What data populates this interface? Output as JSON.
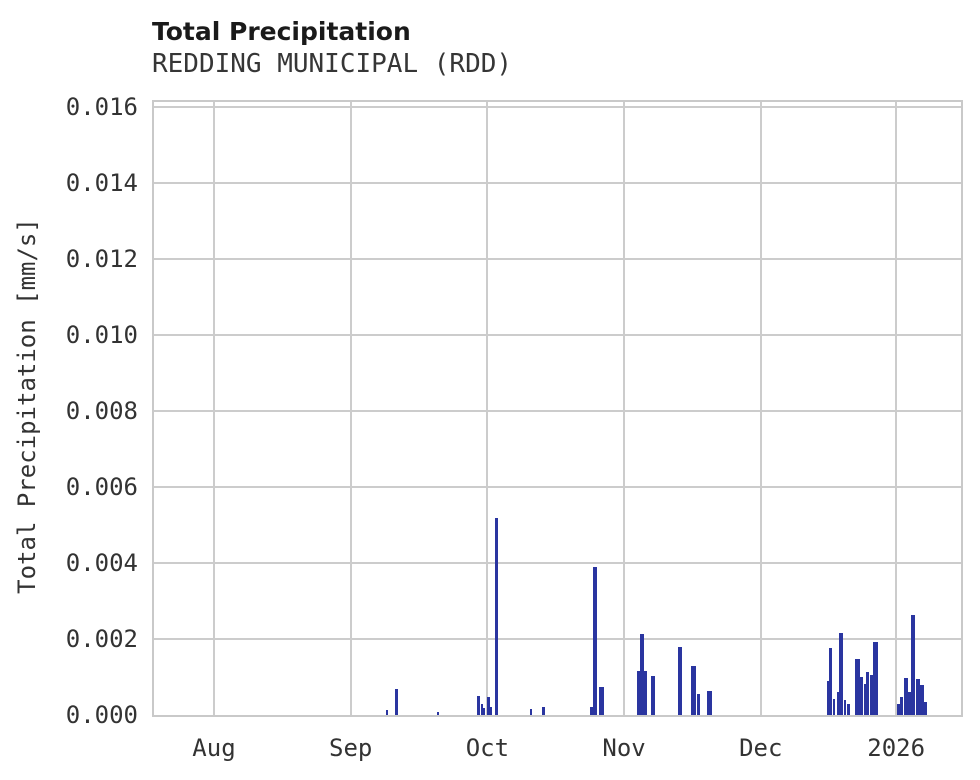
{
  "title": "Total Precipitation",
  "subtitle": "REDDING MUNICIPAL (RDD)",
  "chart_data": {
    "type": "bar",
    "title": "Total Precipitation",
    "subtitle": "REDDING MUNICIPAL (RDD)",
    "station": "REDDING MUNICIPAL (RDD)",
    "xlabel": "",
    "ylabel": "Total Precipitation [mm/s]",
    "ylim": [
      0,
      0.01614
    ],
    "x_domain_days": [
      0,
      183
    ],
    "grid": true,
    "legend": "none",
    "bar_color": "#2a35a0",
    "grid_color": "#cccccc",
    "axis_text_color": "#333333",
    "y_ticks": [
      {
        "label": "0.000",
        "v": 0.0
      },
      {
        "label": "0.002",
        "v": 0.002
      },
      {
        "label": "0.004",
        "v": 0.004
      },
      {
        "label": "0.006",
        "v": 0.006
      },
      {
        "label": "0.008",
        "v": 0.008
      },
      {
        "label": "0.010",
        "v": 0.01
      },
      {
        "label": "0.012",
        "v": 0.012
      },
      {
        "label": "0.014",
        "v": 0.014
      },
      {
        "label": "0.016",
        "v": 0.016
      }
    ],
    "x_ticks": [
      {
        "label": "Aug",
        "day": 13.6
      },
      {
        "label": "Sep",
        "day": 44.6
      },
      {
        "label": "Oct",
        "day": 75.6
      },
      {
        "label": "Nov",
        "day": 106.6
      },
      {
        "label": "Dec",
        "day": 137.6
      },
      {
        "label": "2026",
        "day": 168.3
      }
    ],
    "bars": [
      {
        "x": 52.9,
        "w": 0.45,
        "v": 0.00012
      },
      {
        "x": 55.1,
        "w": 0.68,
        "v": 0.00068
      },
      {
        "x": 64.5,
        "w": 0.45,
        "v": 8e-05
      },
      {
        "x": 73.6,
        "w": 0.68,
        "v": 0.0005
      },
      {
        "x": 74.3,
        "w": 0.45,
        "v": 0.0003
      },
      {
        "x": 74.8,
        "w": 0.45,
        "v": 0.00018
      },
      {
        "x": 75.8,
        "w": 0.68,
        "v": 0.00048
      },
      {
        "x": 76.5,
        "w": 0.45,
        "v": 0.00022
      },
      {
        "x": 77.7,
        "w": 0.79,
        "v": 0.0052
      },
      {
        "x": 85.5,
        "w": 0.45,
        "v": 0.00015
      },
      {
        "x": 88.4,
        "w": 0.68,
        "v": 0.00022
      },
      {
        "x": 99.3,
        "w": 0.68,
        "v": 0.0002
      },
      {
        "x": 100.1,
        "w": 0.9,
        "v": 0.0039
      },
      {
        "x": 101.5,
        "w": 1.13,
        "v": 0.00075
      },
      {
        "x": 109.8,
        "w": 0.68,
        "v": 0.00115
      },
      {
        "x": 110.6,
        "w": 0.9,
        "v": 0.00212
      },
      {
        "x": 111.4,
        "w": 0.68,
        "v": 0.00115
      },
      {
        "x": 113.1,
        "w": 0.9,
        "v": 0.00103
      },
      {
        "x": 119.2,
        "w": 0.9,
        "v": 0.00178
      },
      {
        "x": 122.4,
        "w": 1.13,
        "v": 0.00128
      },
      {
        "x": 123.4,
        "w": 0.68,
        "v": 0.00055
      },
      {
        "x": 126.0,
        "w": 1.02,
        "v": 0.00062
      },
      {
        "x": 152.8,
        "w": 0.57,
        "v": 0.0009
      },
      {
        "x": 153.4,
        "w": 0.68,
        "v": 0.00176
      },
      {
        "x": 154.1,
        "w": 0.45,
        "v": 0.00042
      },
      {
        "x": 155.1,
        "w": 0.57,
        "v": 0.0006
      },
      {
        "x": 155.8,
        "w": 0.9,
        "v": 0.00215
      },
      {
        "x": 156.7,
        "w": 0.57,
        "v": 0.0004
      },
      {
        "x": 157.6,
        "w": 0.68,
        "v": 0.00028
      },
      {
        "x": 159.5,
        "w": 1.02,
        "v": 0.00148
      },
      {
        "x": 160.5,
        "w": 0.68,
        "v": 0.001
      },
      {
        "x": 161.2,
        "w": 0.57,
        "v": 0.00082
      },
      {
        "x": 161.9,
        "w": 0.68,
        "v": 0.00113
      },
      {
        "x": 162.6,
        "w": 0.68,
        "v": 0.00105
      },
      {
        "x": 163.6,
        "w": 1.02,
        "v": 0.00191
      },
      {
        "x": 168.9,
        "w": 0.68,
        "v": 0.0003
      },
      {
        "x": 169.6,
        "w": 0.68,
        "v": 0.00048
      },
      {
        "x": 170.5,
        "w": 1.02,
        "v": 0.00097
      },
      {
        "x": 171.4,
        "w": 0.68,
        "v": 0.0006
      },
      {
        "x": 172.2,
        "w": 0.9,
        "v": 0.00263
      },
      {
        "x": 173.2,
        "w": 1.02,
        "v": 0.00095
      },
      {
        "x": 174.2,
        "w": 0.9,
        "v": 0.00078
      },
      {
        "x": 175.0,
        "w": 0.68,
        "v": 0.00035
      }
    ]
  }
}
